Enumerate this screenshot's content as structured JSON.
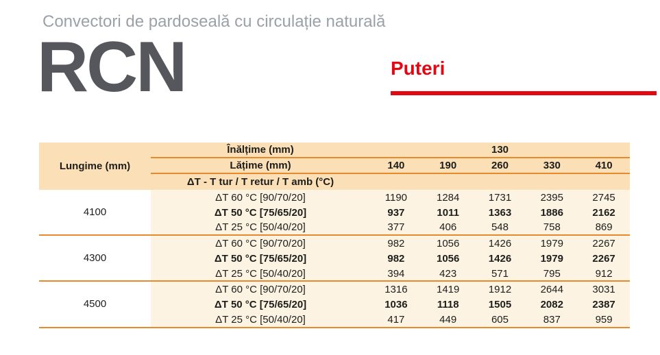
{
  "page": {
    "title": "Convectori de pardoseală cu circulație naturală",
    "product_code": "RCN",
    "section_heading": "Puteri"
  },
  "colors": {
    "accent_red": "#e30613",
    "header_peach": "#fbdfb6",
    "body_cream": "#fcf3e2",
    "line_orange": "#e8892b",
    "title_gray": "#9ba1a8",
    "product_code_gray": "#55575c",
    "text_dark": "#1d1d1b"
  },
  "table": {
    "length_header": "Lungime (mm)",
    "height_header": "Înălțime (mm)",
    "height_value": "130",
    "width_header": "Lățime (mm)",
    "width_values": [
      "140",
      "190",
      "260",
      "330",
      "410"
    ],
    "delta_header": "ΔT - T tur / T retur / T amb (°C)",
    "groups": [
      {
        "length": "4100",
        "rows": [
          {
            "label": "ΔT 60 °C [90/70/20]",
            "bold": false,
            "values": [
              "1190",
              "1284",
              "1731",
              "2395",
              "2745"
            ]
          },
          {
            "label": "ΔT 50 °C [75/65/20]",
            "bold": true,
            "values": [
              "937",
              "1011",
              "1363",
              "1886",
              "2162"
            ]
          },
          {
            "label": "ΔT 25 °C [50/40/20]",
            "bold": false,
            "values": [
              "377",
              "406",
              "548",
              "758",
              "869"
            ]
          }
        ]
      },
      {
        "length": "4300",
        "rows": [
          {
            "label": "ΔT 60 °C [90/70/20]",
            "bold": false,
            "values": [
              "982",
              "1056",
              "1426",
              "1979",
              "2267"
            ]
          },
          {
            "label": "ΔT 50 °C [75/65/20]",
            "bold": true,
            "values": [
              "982",
              "1056",
              "1426",
              "1979",
              "2267"
            ]
          },
          {
            "label": "ΔT 25 °C [50/40/20]",
            "bold": false,
            "values": [
              "394",
              "423",
              "571",
              "795",
              "912"
            ]
          }
        ]
      },
      {
        "length": "4500",
        "rows": [
          {
            "label": "ΔT 60 °C [90/70/20]",
            "bold": false,
            "values": [
              "1316",
              "1419",
              "1912",
              "2644",
              "3031"
            ]
          },
          {
            "label": "ΔT 50 °C [75/65/20]",
            "bold": true,
            "values": [
              "1036",
              "1118",
              "1505",
              "2082",
              "2387"
            ]
          },
          {
            "label": "ΔT 25 °C [50/40/20]",
            "bold": false,
            "values": [
              "417",
              "449",
              "605",
              "837",
              "959"
            ]
          }
        ]
      }
    ]
  }
}
